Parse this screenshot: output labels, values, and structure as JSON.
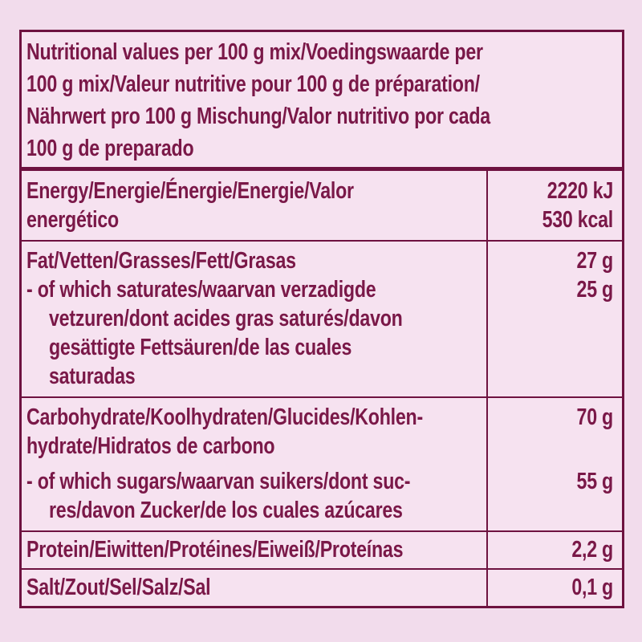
{
  "colors": {
    "page_background": "#f2dcec",
    "panel_background": "#f6e2f0",
    "line_and_text": "#6e1240",
    "text": "#7a1848"
  },
  "table": {
    "header_text": "Nutritional values per 100 g mix/Voedingswaarde per\n100 g mix/Valeur nutritive pour 100 g de préparation/\nNährwert pro 100 g Mischung/Valor nutritivo por cada\n100 g de preparado",
    "rows": {
      "energy": {
        "label": "Energy/Energie/Énergie/Energie/Valor\nenergético",
        "value": "2220 kJ\n530 kcal"
      },
      "fat": {
        "label": "Fat/Vetten/Grasses/Fett/Grasas",
        "value": "27 g"
      },
      "fat_saturates": {
        "label": "- of which saturates/waarvan verzadigde\nvetzuren/dont acides gras saturés/davon\ngesättigte Fettsäuren/de las cuales\nsaturadas",
        "value": "25 g"
      },
      "carbohydrate": {
        "label": "Carbohydrate/Koolhydraten/Glucides/Kohlen-\nhydrate/Hidratos de carbono",
        "value": "70 g"
      },
      "carbohydrate_sugars": {
        "label": "- of which sugars/waarvan suikers/dont suc-\nres/davon Zucker/de los cuales azúcares",
        "value": "55 g"
      },
      "protein": {
        "label": "Protein/Eiwitten/Protéines/Eiweiß/Proteínas",
        "value": "2,2 g"
      },
      "salt": {
        "label": "Salt/Zout/Sel/Salz/Sal",
        "value": "0,1 g"
      }
    }
  }
}
